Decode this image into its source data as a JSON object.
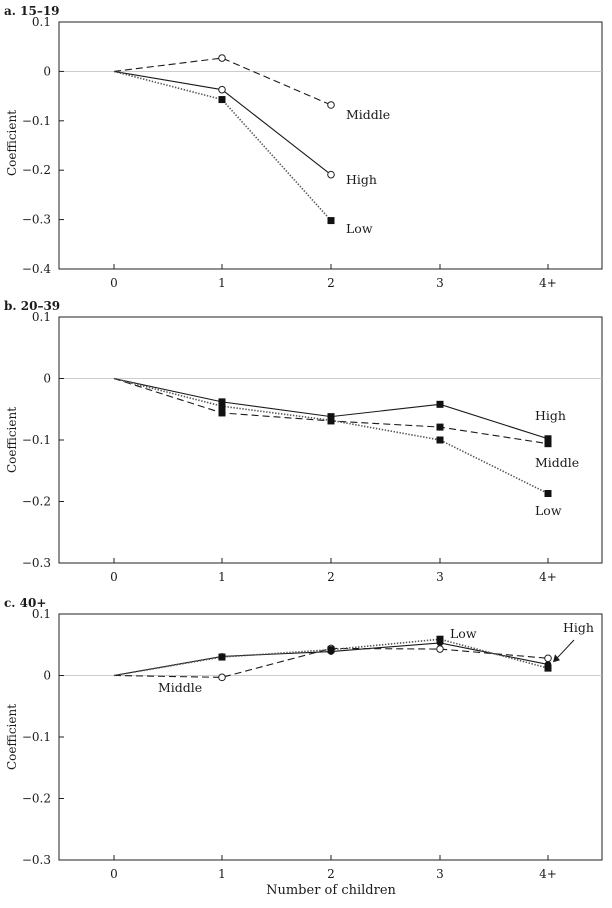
{
  "figure": {
    "xlabel": "Number of children",
    "ylabel": "Coefficient"
  },
  "chart_data": [
    {
      "type": "line",
      "title": "a. 15–19",
      "categories": [
        "0",
        "1",
        "2",
        "3",
        "4+"
      ],
      "ylim": [
        -0.4,
        0.1
      ],
      "yticks": [
        0.1,
        0,
        -0.1,
        -0.2,
        -0.3,
        -0.4
      ],
      "ytick_labels": [
        "0.1",
        "0",
        "−0.1",
        "−0.2",
        "−0.3",
        "−0.4"
      ],
      "zero_line": true,
      "series": [
        {
          "name": "Middle",
          "style": "dashed",
          "marker": "open-circle",
          "values": [
            0,
            0.027,
            -0.068,
            null,
            null
          ]
        },
        {
          "name": "High",
          "style": "solid",
          "marker": "open-circle",
          "values": [
            0,
            -0.037,
            -0.209,
            null,
            null
          ]
        },
        {
          "name": "Low",
          "style": "dotted",
          "marker": "filled-square",
          "values": [
            0,
            -0.057,
            -0.302,
            null,
            null
          ]
        }
      ]
    },
    {
      "type": "line",
      "title": "b. 20–39",
      "categories": [
        "0",
        "1",
        "2",
        "3",
        "4+"
      ],
      "ylim": [
        -0.3,
        0.1
      ],
      "yticks": [
        0.1,
        0,
        -0.1,
        -0.2,
        -0.3
      ],
      "ytick_labels": [
        "0.1",
        "0",
        "−0.1",
        "−0.2",
        "−0.3"
      ],
      "zero_line": true,
      "series": [
        {
          "name": "High",
          "style": "solid",
          "marker": "filled-square",
          "values": [
            0,
            -0.038,
            -0.062,
            -0.042,
            -0.098
          ]
        },
        {
          "name": "Middle",
          "style": "dashed",
          "marker": "filled-square",
          "values": [
            0,
            -0.056,
            -0.069,
            -0.079,
            -0.106
          ]
        },
        {
          "name": "Low",
          "style": "dotted",
          "marker": "filled-square",
          "values": [
            0,
            -0.045,
            -0.068,
            -0.1,
            -0.187
          ]
        }
      ]
    },
    {
      "type": "line",
      "title": "c. 40+",
      "categories": [
        "0",
        "1",
        "2",
        "3",
        "4+"
      ],
      "ylim": [
        -0.3,
        0.1
      ],
      "yticks": [
        0.1,
        0,
        -0.1,
        -0.2,
        -0.3
      ],
      "ytick_labels": [
        "0.1",
        "0",
        "−0.1",
        "−0.2",
        "−0.3"
      ],
      "zero_line": true,
      "series": [
        {
          "name": "High",
          "style": "solid",
          "marker": "filled-circle",
          "values": [
            0,
            0.031,
            0.039,
            0.053,
            0.018
          ]
        },
        {
          "name": "Middle",
          "style": "dashed",
          "marker": "open-circle",
          "values": [
            0,
            -0.003,
            0.044,
            0.043,
            0.028
          ]
        },
        {
          "name": "Low",
          "style": "dotted",
          "marker": "filled-square",
          "values": [
            0,
            0.03,
            0.042,
            0.059,
            0.012
          ]
        }
      ]
    }
  ]
}
